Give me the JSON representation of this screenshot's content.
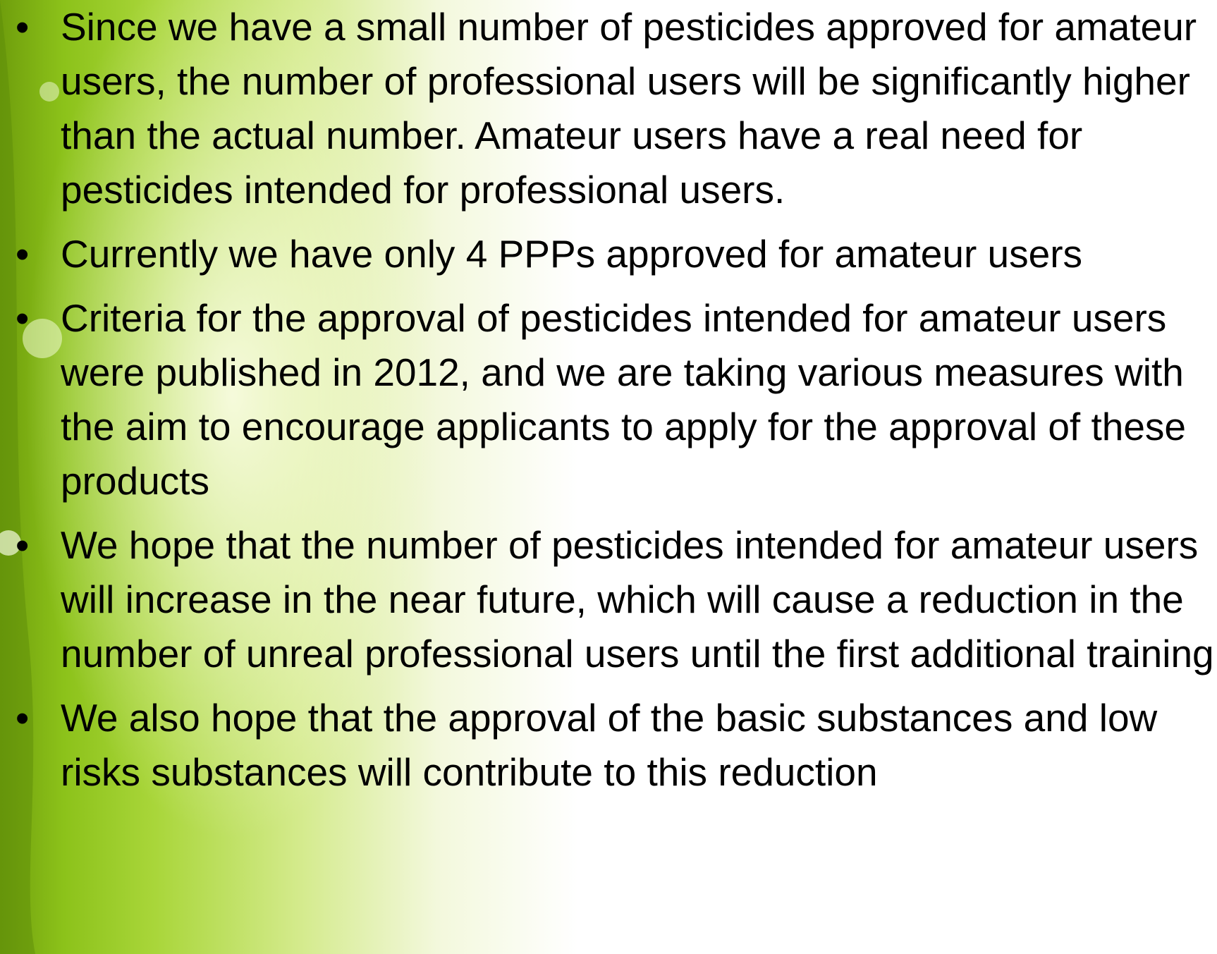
{
  "bullets": [
    "Since we have a small number of pesticides approved for amateur users, the number of professional users will be significantly higher than the actual number. Amateur users have a real need for pesticides intended for professional users.",
    "Currently we have only 4 PPPs approved for amateur users",
    "Criteria for the approval of pesticides intended for amateur users were published in 2012, and we are taking various measures with the aim to encourage applicants to apply for the approval of these products",
    "We hope that the number of pesticides intended for amateur users will increase in the near future, which will cause a reduction in the number of unreal professional users until the first additional training",
    "We also hope that the approval of the basic substances and low risks substances will contribute to this reduction"
  ]
}
